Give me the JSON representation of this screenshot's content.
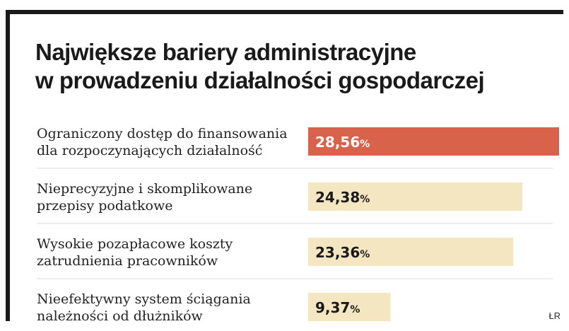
{
  "title": {
    "line1": "Największe bariery administracyjne",
    "line2": "w prowadzeniu działalności gospodarczej"
  },
  "source": "ŁR",
  "colors": {
    "highlight": "#d9634a",
    "bar": "#f3e6c1",
    "frame": "#1a1a1a",
    "highlight_text": "#ffffff",
    "bar_text": "#1a1a1a"
  },
  "chart_data": {
    "type": "bar",
    "orientation": "horizontal",
    "title": "Największe bariery administracyjne w prowadzeniu działalności gospodarczej",
    "categories": [
      [
        "Ograniczony dostęp do finansowania",
        "dla rozpoczynających działalność"
      ],
      [
        "Nieprecyzyjne i skomplikowane",
        "przepisy podatkowe"
      ],
      [
        "Wysokie pozapłacowe koszty",
        "zatrudnienia pracowników"
      ],
      [
        "Nieefektywny system ściągania",
        "należności od dłużników"
      ]
    ],
    "values": [
      28.56,
      24.38,
      23.36,
      9.37
    ],
    "value_labels": [
      "28,56",
      "24,38",
      "23,36",
      "9,37"
    ],
    "unit": "%",
    "highlight_index": 0,
    "xlim": [
      0,
      28.56
    ],
    "grid": false,
    "legend": "none"
  }
}
